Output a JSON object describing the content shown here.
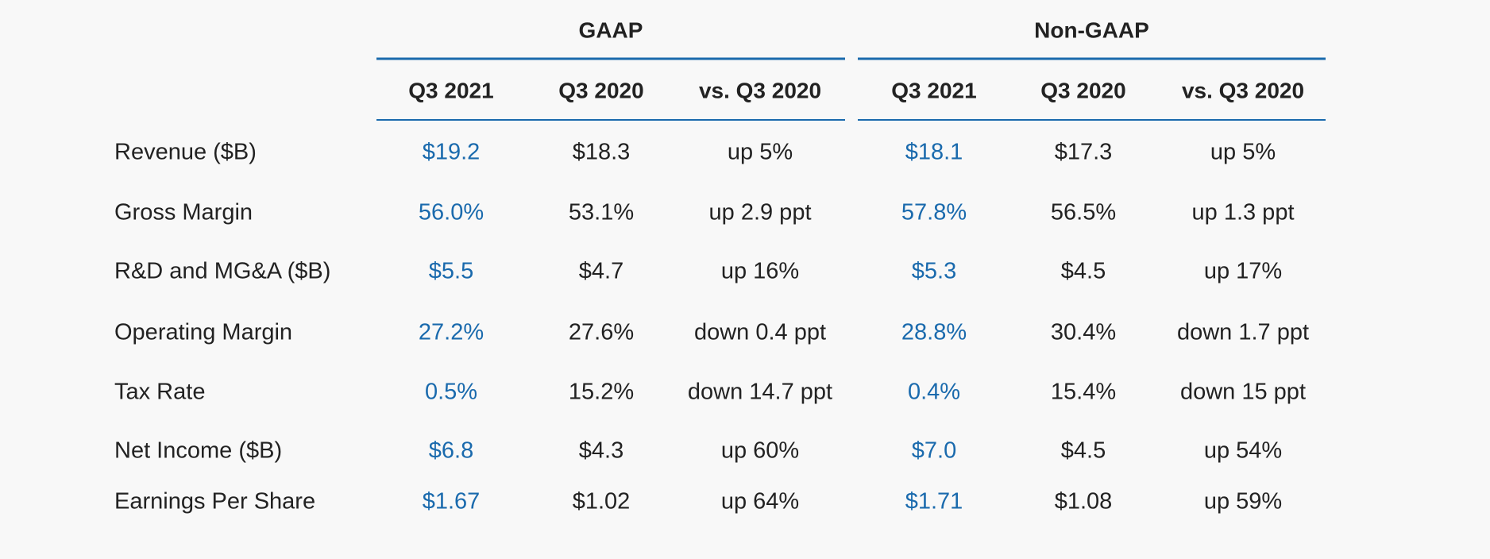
{
  "table": {
    "groups": [
      {
        "title": "GAAP",
        "columns": [
          "Q3 2021",
          "Q3 2020",
          "vs. Q3 2020"
        ]
      },
      {
        "title": "Non-GAAP",
        "columns": [
          "Q3 2021",
          "Q3 2020",
          "vs. Q3 2020"
        ]
      }
    ],
    "rows": [
      {
        "label": "Revenue ($B)",
        "values": [
          "$19.2",
          "$18.3",
          "up 5%",
          "$18.1",
          "$17.3",
          "up 5%"
        ]
      },
      {
        "label": "Gross Margin",
        "values": [
          "56.0%",
          "53.1%",
          "up 2.9 ppt",
          "57.8%",
          "56.5%",
          "up 1.3 ppt"
        ]
      },
      {
        "label": "R&D and MG&A ($B)",
        "values": [
          "$5.5",
          "$4.7",
          "up 16%",
          "$5.3",
          "$4.5",
          "up 17%"
        ]
      },
      {
        "label": "Operating Margin",
        "values": [
          "27.2%",
          "27.6%",
          "down 0.4 ppt",
          "28.8%",
          "30.4%",
          "down 1.7 ppt"
        ]
      },
      {
        "label": "Tax Rate",
        "values": [
          "0.5%",
          "15.2%",
          "down 14.7 ppt",
          "0.4%",
          "15.4%",
          "down 15 ppt"
        ]
      },
      {
        "label": "Net Income ($B)",
        "values": [
          "$6.8",
          "$4.3",
          "up 60%",
          "$7.0",
          "$4.5",
          "up 54%"
        ]
      },
      {
        "label": "Earnings Per Share",
        "values": [
          "$1.67",
          "$1.02",
          "up 64%",
          "$1.71",
          "$1.08",
          "up 59%"
        ]
      }
    ]
  }
}
